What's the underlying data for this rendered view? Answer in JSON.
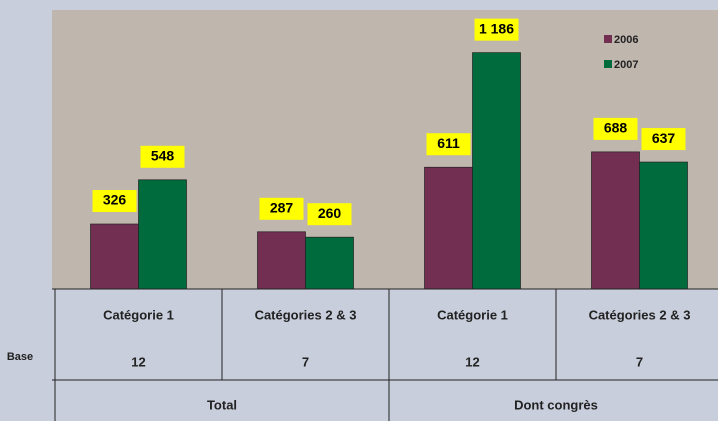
{
  "chart_data": {
    "type": "bar",
    "categories": [
      "Catégorie 1",
      "Catégories 2 & 3",
      "Catégorie 1",
      "Catégories 2 & 3"
    ],
    "series": [
      {
        "name": "2006",
        "color": "#722f52",
        "values": [
          326,
          287,
          611,
          688
        ],
        "value_labels": [
          "326",
          "287",
          "611",
          "688"
        ]
      },
      {
        "name": "2007",
        "color": "#006b3c",
        "values": [
          548,
          260,
          1186,
          637
        ],
        "value_labels": [
          "548",
          "260",
          "1 186",
          "637"
        ]
      }
    ],
    "ylim": [
      0,
      1400
    ],
    "base_label": "Base",
    "bases": [
      12,
      7,
      12,
      7
    ],
    "groups": [
      "Total",
      "Dont congrès"
    ],
    "plot_color": "#bfb6ae",
    "label_color": "#ffff00"
  }
}
